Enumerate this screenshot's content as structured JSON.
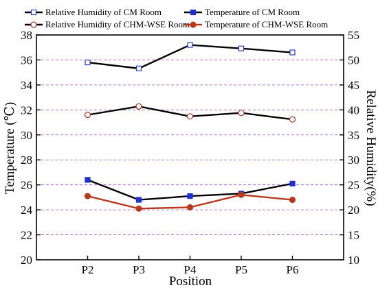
{
  "chart_data": {
    "type": "line",
    "categories": [
      "P2",
      "P3",
      "P4",
      "P5",
      "P6"
    ],
    "xlabel": "Position",
    "ylabel_left": "Temperature (℃)",
    "ylabel_right": "Relative Humidity(%)",
    "ylim_left": [
      20,
      38
    ],
    "yticks_left": [
      "20",
      "22",
      "24",
      "26",
      "28",
      "30",
      "32",
      "34",
      "36",
      "38"
    ],
    "ylim_right": [
      10,
      55
    ],
    "yticks_right": [
      "10",
      "15",
      "20",
      "25",
      "30",
      "35",
      "40",
      "45",
      "50",
      "55"
    ],
    "grid": "horizontal dashed",
    "legend_position": "top",
    "series": [
      {
        "name": "Relative Humidity of CM Room",
        "axis": "right",
        "values": [
          49.5,
          48.3,
          53.0,
          52.3,
          51.5
        ],
        "color": "#000000",
        "marker": "square-open",
        "marker_color": "#1f3fbf"
      },
      {
        "name": "Temperature of  CM Room",
        "axis": "left",
        "values": [
          26.4,
          24.8,
          25.1,
          25.3,
          26.1
        ],
        "color": "#000000",
        "marker": "square-filled",
        "marker_color": "#1f2fd6"
      },
      {
        "name": "Relative Humidity of CHM-WSE Room",
        "axis": "right",
        "values": [
          39.0,
          40.7,
          38.7,
          39.4,
          38.1
        ],
        "color": "#000000",
        "marker": "circle-open",
        "marker_color": "#b03020"
      },
      {
        "name": "Temperature of  CHM-WSE Room",
        "axis": "left",
        "values": [
          25.1,
          24.1,
          24.2,
          25.2,
          24.8
        ],
        "color": "#b83a1e",
        "marker": "circle-filled",
        "marker_color": "#b83a1e"
      }
    ]
  }
}
